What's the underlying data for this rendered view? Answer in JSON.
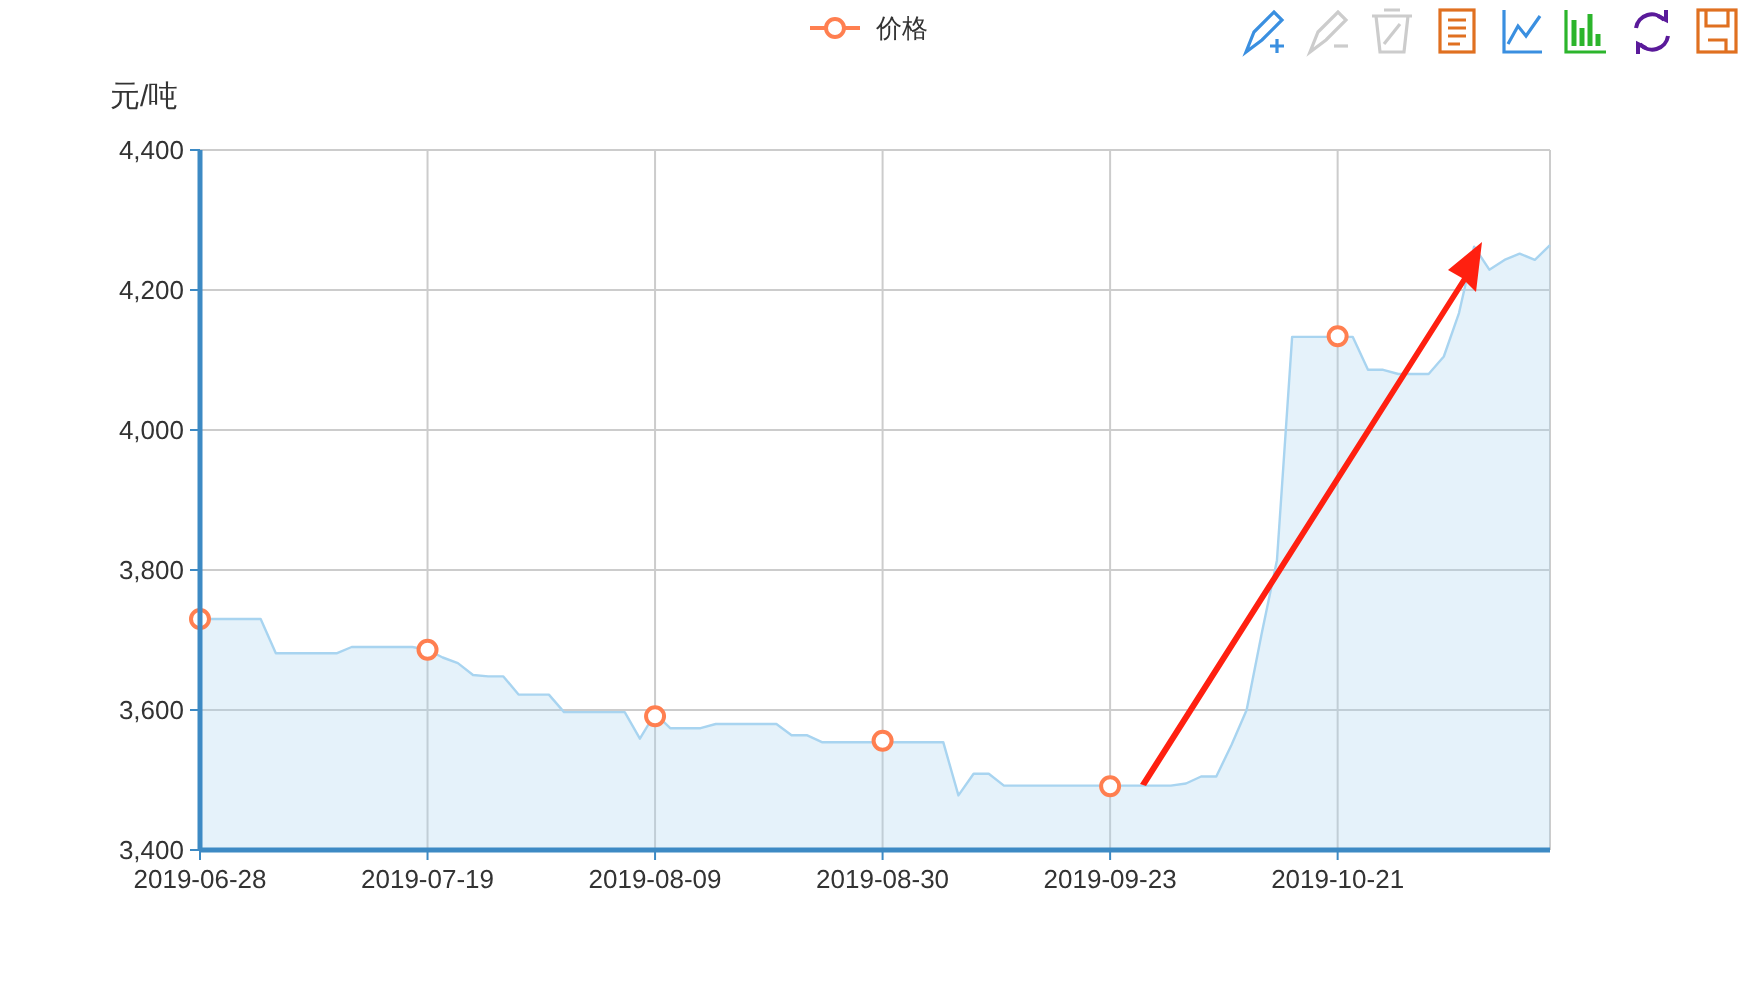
{
  "chart_data": {
    "type": "area",
    "ylabel": "元/吨",
    "categories": [
      "2019-06-28",
      null,
      null,
      null,
      null,
      null,
      null,
      null,
      null,
      null,
      null,
      null,
      null,
      null,
      null,
      "2019-07-19",
      null,
      null,
      null,
      null,
      null,
      null,
      null,
      null,
      null,
      null,
      null,
      null,
      null,
      null,
      "2019-08-09",
      null,
      null,
      null,
      null,
      null,
      null,
      null,
      null,
      null,
      null,
      null,
      null,
      null,
      null,
      "2019-08-30",
      null,
      null,
      null,
      null,
      null,
      null,
      null,
      null,
      null,
      null,
      null,
      null,
      null,
      null,
      "2019-09-23",
      null,
      null,
      null,
      null,
      null,
      null,
      null,
      null,
      null,
      null,
      null,
      null,
      null,
      null,
      "2019-10-21",
      null,
      null,
      null,
      null,
      null,
      null,
      null,
      null,
      null,
      null,
      null,
      null,
      null,
      null
    ],
    "series": [
      {
        "color": "#a8d4f0",
        "marker": "none",
        "values": [
          3730,
          3730,
          3730,
          3730,
          3730,
          3681,
          3681,
          3681,
          3681,
          3681,
          3690,
          3690,
          3690,
          3690,
          3690,
          3686,
          3675,
          3667,
          3650,
          3648,
          3648,
          3622,
          3622,
          3622,
          3597,
          3597,
          3597,
          3597,
          3597,
          3559,
          3595,
          3574,
          3574,
          3574,
          3580,
          3580,
          3580,
          3580,
          3580,
          3564,
          3564,
          3554,
          3554,
          3554,
          3554,
          3554,
          3554,
          3554,
          3554,
          3554,
          3478,
          3509,
          3509,
          3492,
          3492,
          3492,
          3492,
          3492,
          3492,
          3492,
          3492,
          3492,
          3492,
          3492,
          3492,
          3495,
          3505,
          3505,
          3550,
          3600,
          3710,
          3814,
          4133,
          4133,
          4133,
          4133,
          4133,
          4086,
          4086,
          4080,
          4080,
          4080,
          4105,
          4167,
          4262,
          4229,
          4243,
          4252,
          4243,
          4264
        ]
      },
      {
        "type": "scatter",
        "name": "价格",
        "color": "#ff7f50",
        "marker": "circle",
        "values": [
          3730,
          null,
          null,
          null,
          null,
          null,
          null,
          null,
          null,
          null,
          null,
          null,
          null,
          null,
          null,
          3686,
          null,
          null,
          null,
          null,
          null,
          null,
          null,
          null,
          null,
          null,
          null,
          null,
          null,
          null,
          3591,
          null,
          null,
          null,
          null,
          null,
          null,
          null,
          null,
          null,
          null,
          null,
          null,
          null,
          null,
          3556,
          null,
          null,
          null,
          null,
          null,
          null,
          null,
          null,
          null,
          null,
          null,
          null,
          null,
          null,
          3491,
          null,
          null,
          null,
          null,
          null,
          null,
          null,
          null,
          null,
          null,
          null,
          null,
          null,
          null,
          4134,
          null,
          null,
          null,
          null,
          null,
          null,
          null,
          null,
          null,
          null,
          null,
          null,
          null,
          null
        ]
      }
    ],
    "ylim": [
      3400,
      4400
    ],
    "yticks": [
      {
        "value": 3400,
        "label": "3,400"
      },
      {
        "value": 3600,
        "label": "3,600"
      },
      {
        "value": 3800,
        "label": "3,800"
      },
      {
        "value": 4000,
        "label": "4,000"
      },
      {
        "value": 4200,
        "label": "4,200"
      },
      {
        "value": 4400,
        "label": "4,400"
      }
    ],
    "grid": true,
    "legend": "top"
  }
}
